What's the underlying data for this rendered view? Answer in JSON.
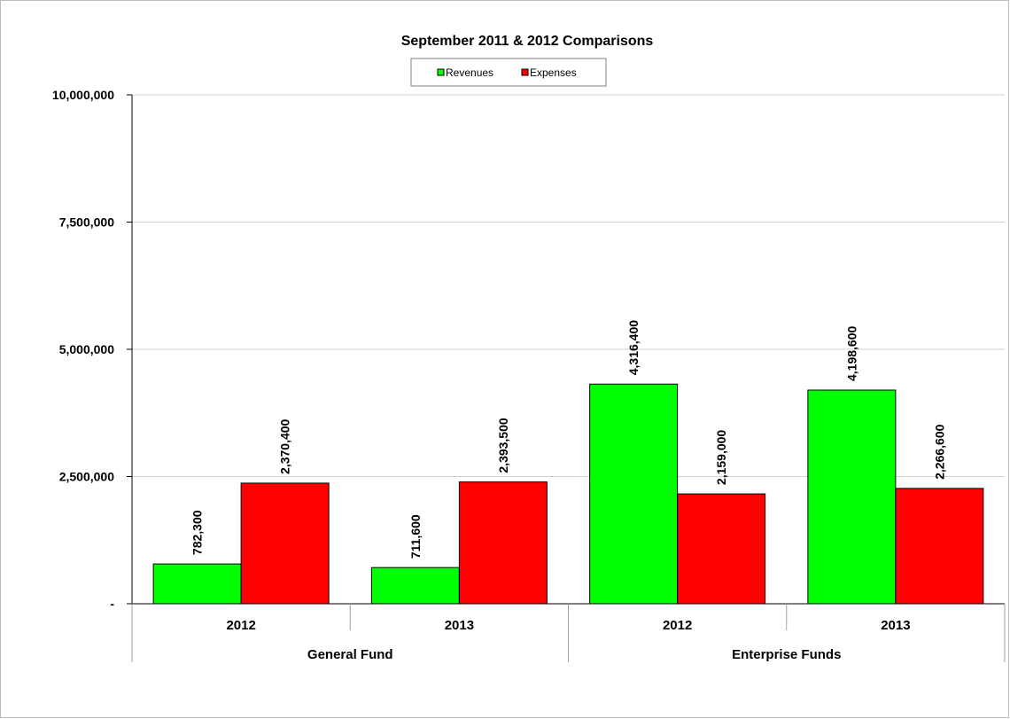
{
  "chart_data": {
    "type": "bar",
    "title": "September 2011 & 2012 Comparisons",
    "xlabel": "",
    "ylabel": "",
    "ylim": [
      0,
      10000000
    ],
    "yticks": [
      0,
      2500000,
      5000000,
      7500000,
      10000000
    ],
    "ytick_labels": [
      "-",
      "2,500,000",
      "5,000,000",
      "7,500,000",
      "10,000,000"
    ],
    "grid": true,
    "legend_position": "top-center",
    "groups": [
      "General Fund",
      "Enterprise Funds"
    ],
    "categories": [
      "2012",
      "2013",
      "2012",
      "2013"
    ],
    "category_group": [
      0,
      0,
      1,
      1
    ],
    "series": [
      {
        "name": "Revenues",
        "color": "#00ff00",
        "values": [
          782300,
          711600,
          4316400,
          4198600
        ],
        "labels": [
          "782,300",
          "711,600",
          "4,316,400",
          "4,198,600"
        ]
      },
      {
        "name": "Expenses",
        "color": "#ff0000",
        "values": [
          2370400,
          2393500,
          2159000,
          2266600
        ],
        "labels": [
          "2,370,400",
          "2,393,500",
          "2,159,000",
          "2,266,600"
        ]
      }
    ]
  }
}
